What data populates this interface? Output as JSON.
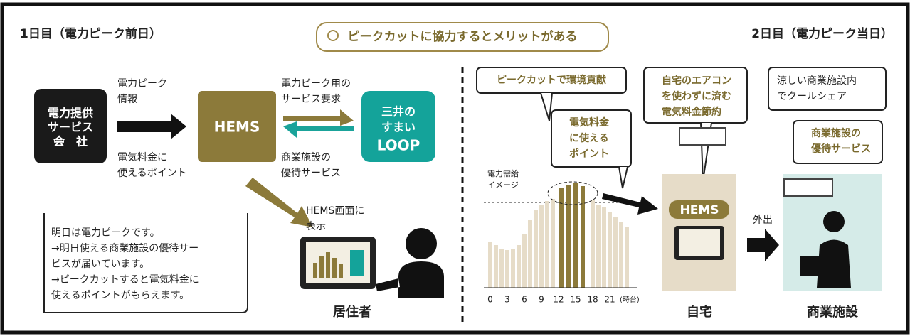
{
  "header": {
    "left_title": "1日目（電力ピーク前日）",
    "banner": "ピークカットに協力するとメリットがある",
    "right_title": "2日目（電力ピーク当日）"
  },
  "day1": {
    "company": [
      "電力提供",
      "サービス",
      "会　社"
    ],
    "hems": "HEMS",
    "loop": [
      "三井の",
      "すまい",
      "LOOP"
    ],
    "peak_info": [
      "電力ピーク",
      "情報"
    ],
    "points": [
      "電気料金に",
      "使えるポイント"
    ],
    "request": [
      "電力ピーク用の",
      "サービス要求"
    ],
    "benefit": [
      "商業施設の",
      "優待サービス"
    ],
    "display": [
      "HEMS画面に",
      "表示"
    ],
    "message": [
      "明日は電力ピークです。",
      "→明日使える商業施設の優待サー",
      "ビスが届いています。",
      "→ピークカットすると電気料金に",
      "使えるポイントがもらえます。"
    ],
    "resident": "居住者"
  },
  "day2": {
    "eco": "ピークカットで環境貢献",
    "points": [
      "電気料金",
      "に使える",
      "ポイント"
    ],
    "saving": [
      "自宅のエアコン",
      "を使わずに済む",
      "電気料金節約"
    ],
    "coolshare": [
      "涼しい商業施設内",
      "でクールシェア"
    ],
    "benefit": [
      "商業施設の",
      "優待サービス"
    ],
    "chart_label": [
      "電力需給",
      "イメージ"
    ],
    "hours": [
      "0",
      "3",
      "6",
      "9",
      "12",
      "15",
      "18",
      "21"
    ],
    "hour_unit": "(時台)",
    "hems": "HEMS",
    "home": "自宅",
    "goout": "外出",
    "facility": "商業施設"
  }
}
